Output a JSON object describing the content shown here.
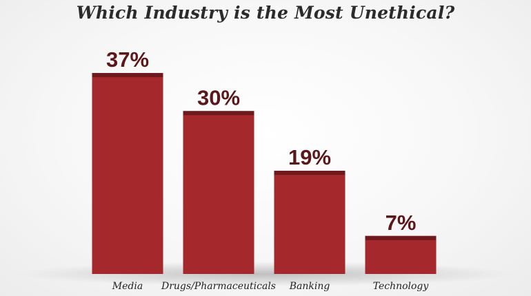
{
  "chart_data": {
    "type": "bar",
    "title": "Which Industry is the Most Unethical?",
    "categories": [
      "Media",
      "Drugs/Pharmaceuticals",
      "Banking",
      "Technology"
    ],
    "values": [
      37,
      30,
      19,
      7
    ],
    "value_labels": [
      "37%",
      "30%",
      "19%",
      "7%"
    ],
    "unit": "%",
    "ylim": [
      0,
      40
    ],
    "grid": false,
    "legend": "none",
    "colors": {
      "bar": "#a4282c",
      "bar_cap": "#6e1a1d",
      "value_label": "#5b1719"
    }
  }
}
